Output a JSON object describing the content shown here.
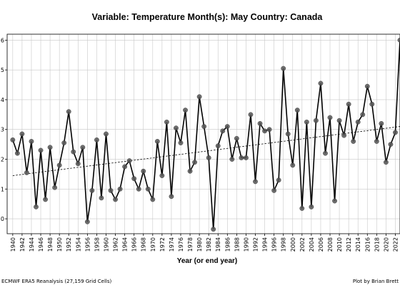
{
  "chart_data": {
    "type": "line",
    "title": "Variable: Temperature    Month(s): May    Country: Canada",
    "xlabel": "Year (or end year)",
    "ylabel": "",
    "x": [
      1940,
      1941,
      1942,
      1943,
      1944,
      1945,
      1946,
      1947,
      1948,
      1949,
      1950,
      1951,
      1952,
      1953,
      1954,
      1955,
      1956,
      1957,
      1958,
      1959,
      1960,
      1961,
      1962,
      1963,
      1964,
      1965,
      1966,
      1967,
      1968,
      1969,
      1970,
      1971,
      1972,
      1973,
      1974,
      1975,
      1976,
      1977,
      1978,
      1979,
      1980,
      1981,
      1982,
      1983,
      1984,
      1985,
      1986,
      1987,
      1988,
      1989,
      1990,
      1991,
      1992,
      1993,
      1994,
      1995,
      1996,
      1997,
      1998,
      1999,
      2000,
      2001,
      2002,
      2003,
      2004,
      2005,
      2006,
      2007,
      2008,
      2009,
      2010,
      2011,
      2012,
      2013,
      2014,
      2015,
      2016,
      2017,
      2018,
      2019,
      2020,
      2021,
      2022,
      2023
    ],
    "values": [
      2.65,
      2.2,
      2.85,
      1.55,
      2.6,
      0.4,
      2.3,
      0.65,
      2.4,
      1.05,
      1.8,
      2.55,
      3.6,
      2.25,
      1.85,
      2.4,
      -0.1,
      0.95,
      2.65,
      0.7,
      2.85,
      0.95,
      0.65,
      1.0,
      1.75,
      1.95,
      1.35,
      1.0,
      1.6,
      1.0,
      0.65,
      2.6,
      1.45,
      3.25,
      0.75,
      3.05,
      2.55,
      3.65,
      1.6,
      1.9,
      4.1,
      3.1,
      2.05,
      -0.35,
      2.45,
      2.95,
      3.1,
      2.0,
      2.7,
      2.05,
      2.05,
      3.5,
      1.25,
      3.2,
      2.95,
      3.0,
      0.95,
      1.3,
      5.05,
      2.85,
      1.8,
      3.65,
      0.35,
      3.25,
      0.4,
      3.3,
      4.55,
      2.2,
      3.4,
      0.6,
      3.3,
      2.8,
      3.85,
      2.6,
      3.25,
      3.5,
      4.45,
      3.85,
      2.6,
      3.2,
      1.9,
      2.5,
      2.9,
      6.0
    ],
    "trend": {
      "start": 1.45,
      "end": 3.1
    },
    "ylim": [
      -0.5,
      6.2
    ],
    "yticks": [
      0,
      1,
      2,
      3,
      4,
      5,
      6
    ],
    "xticks": [
      1940,
      1942,
      1944,
      1946,
      1948,
      1950,
      1952,
      1954,
      1956,
      1958,
      1960,
      1962,
      1964,
      1966,
      1968,
      1970,
      1972,
      1974,
      1976,
      1978,
      1980,
      1982,
      1984,
      1986,
      1988,
      1990,
      1992,
      1994,
      1996,
      1998,
      2000,
      2002,
      2004,
      2006,
      2008,
      2010,
      2012,
      2014,
      2016,
      2018,
      2020,
      2022
    ],
    "grid": true,
    "line_color": "#000000",
    "marker_color": "#555555",
    "trend_style": "dashed"
  },
  "footer": {
    "left": "ECMWF ERA5 Reanalysis (27,159 Grid Cells)",
    "right": "Plot by Brian Brett"
  }
}
